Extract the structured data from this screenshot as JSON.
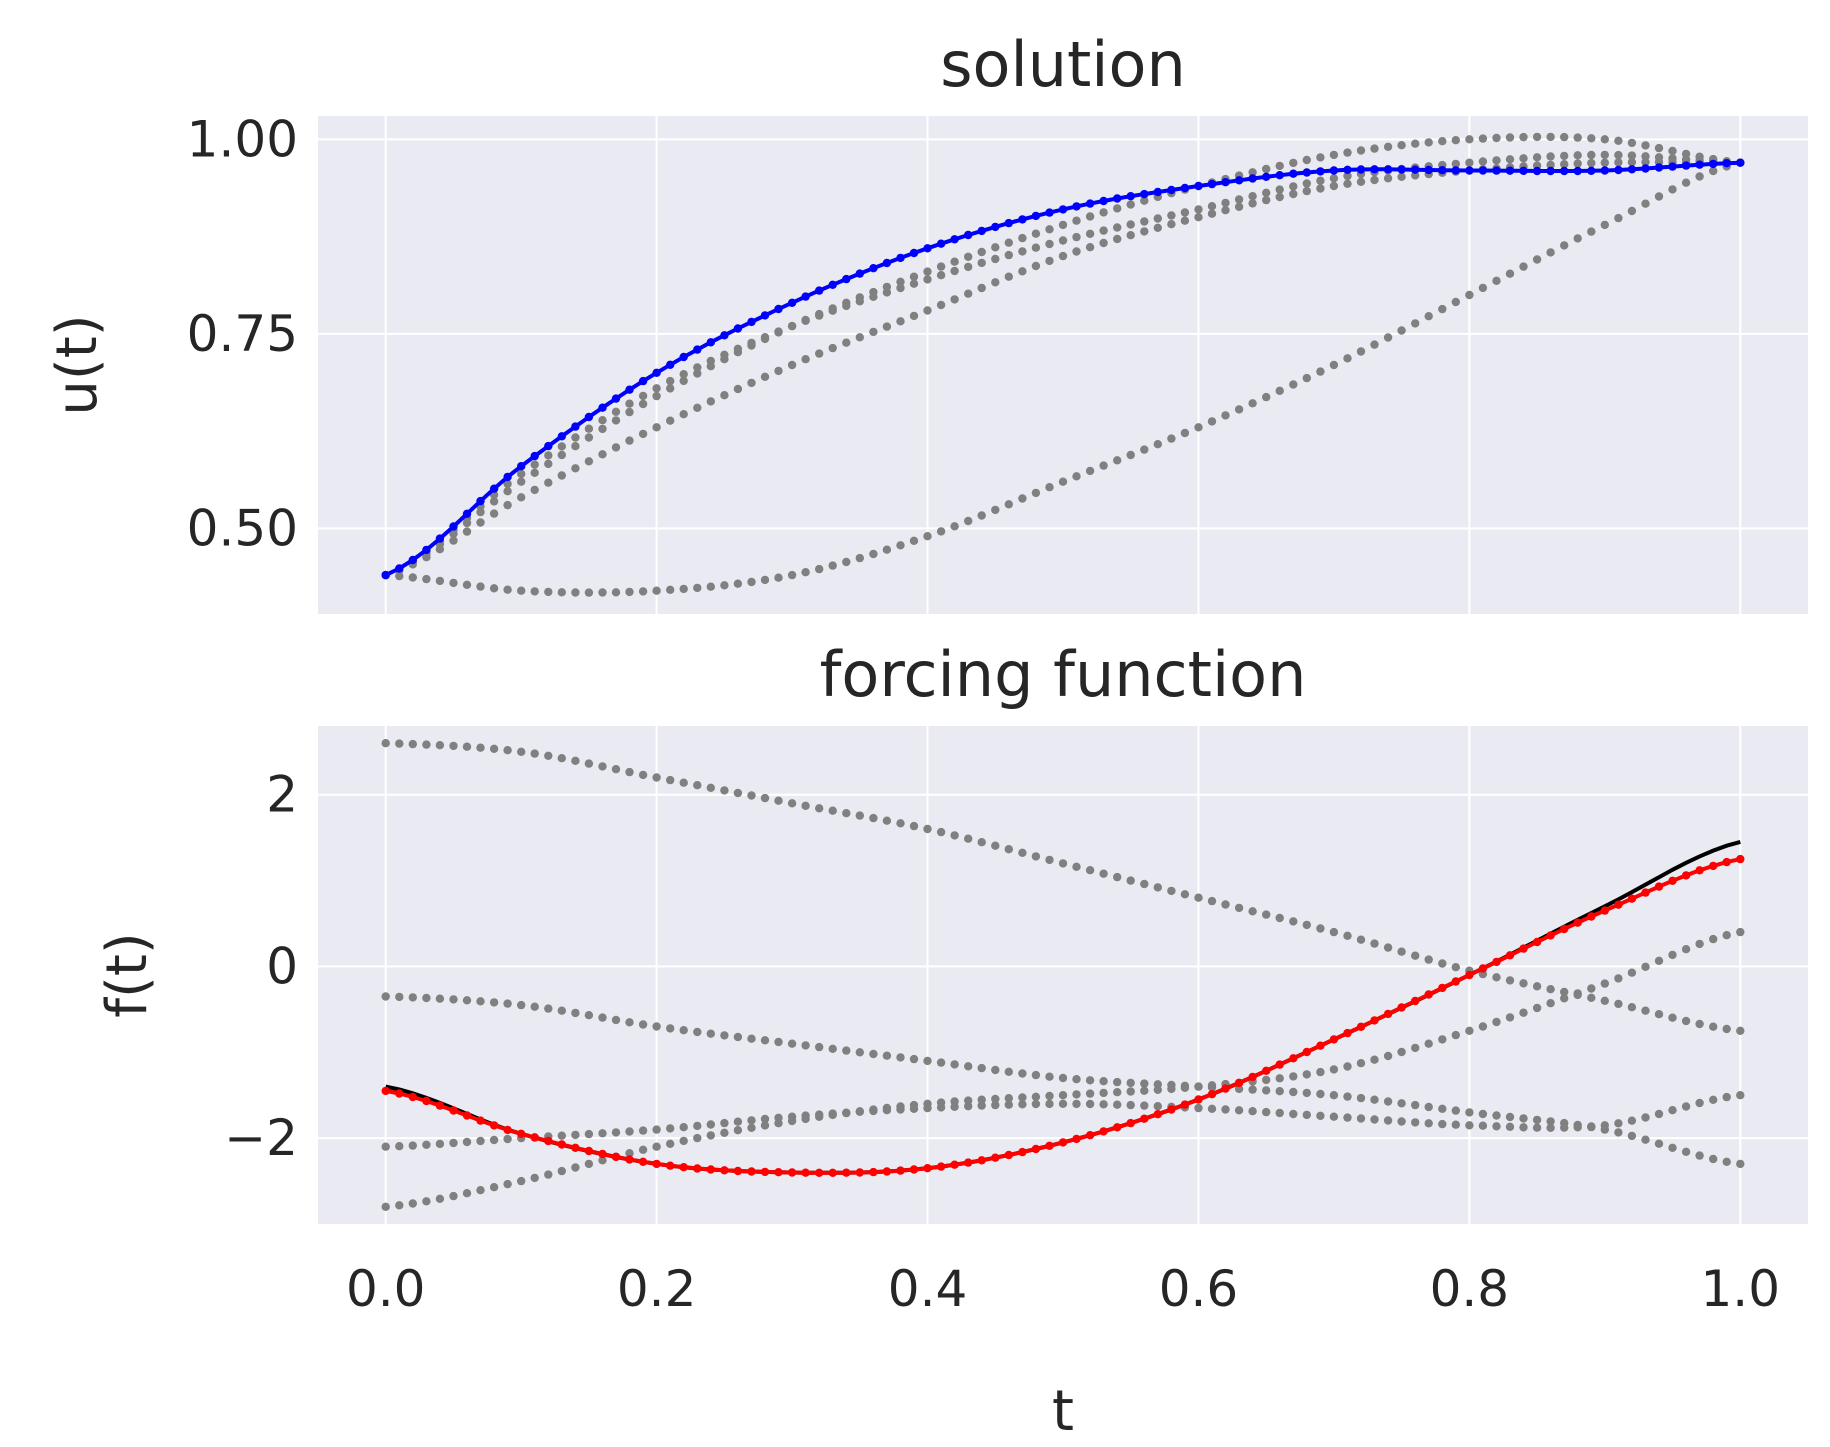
{
  "chart_data": [
    {
      "type": "scatter",
      "title": "solution",
      "xlabel": "",
      "ylabel": "u(t)",
      "xlim": [
        -0.05,
        1.05
      ],
      "ylim": [
        0.39,
        1.03
      ],
      "xticks": [
        0.0,
        0.2,
        0.4,
        0.6,
        0.8,
        1.0
      ],
      "yticks": [
        0.5,
        0.75,
        1.0
      ],
      "ytick_labels": [
        "0.50",
        "0.75",
        "1.00"
      ],
      "xtick_labels_visible": false,
      "grid": true,
      "series": [
        {
          "color": "#808080",
          "style": "dots",
          "x": [
            0.0,
            0.1,
            0.2,
            0.3,
            0.4,
            0.5,
            0.6,
            0.7,
            0.8,
            0.9,
            1.0
          ],
          "y": [
            0.44,
            0.42,
            0.42,
            0.44,
            0.49,
            0.56,
            0.63,
            0.71,
            0.8,
            0.89,
            0.97
          ]
        },
        {
          "color": "#808080",
          "style": "dots",
          "x": [
            0.0,
            0.1,
            0.2,
            0.3,
            0.4,
            0.5,
            0.6,
            0.7,
            0.8,
            0.9,
            1.0
          ],
          "y": [
            0.44,
            0.54,
            0.63,
            0.71,
            0.78,
            0.85,
            0.9,
            0.94,
            0.96,
            0.97,
            0.97
          ]
        },
        {
          "color": "#808080",
          "style": "dots",
          "x": [
            0.0,
            0.1,
            0.2,
            0.3,
            0.4,
            0.5,
            0.6,
            0.7,
            0.8,
            0.9,
            1.0
          ],
          "y": [
            0.44,
            0.57,
            0.68,
            0.76,
            0.82,
            0.87,
            0.91,
            0.95,
            0.97,
            0.98,
            0.97
          ]
        },
        {
          "color": "#808080",
          "style": "dots",
          "x": [
            0.0,
            0.1,
            0.2,
            0.3,
            0.4,
            0.5,
            0.6,
            0.7,
            0.8,
            0.9,
            1.0
          ],
          "y": [
            0.44,
            0.56,
            0.67,
            0.76,
            0.83,
            0.89,
            0.94,
            0.98,
            1.0,
            1.0,
            0.97
          ]
        },
        {
          "color": "#0000ff",
          "style": "line+dots",
          "x": [
            0.0,
            0.1,
            0.2,
            0.3,
            0.4,
            0.5,
            0.6,
            0.7,
            0.8,
            0.9,
            1.0
          ],
          "y": [
            0.44,
            0.58,
            0.7,
            0.79,
            0.86,
            0.91,
            0.94,
            0.96,
            0.96,
            0.96,
            0.97
          ]
        }
      ]
    },
    {
      "type": "scatter",
      "title": "forcing function",
      "xlabel": "t",
      "ylabel": "f(t)",
      "xlim": [
        -0.05,
        1.05
      ],
      "ylim": [
        -3.0,
        2.8
      ],
      "xticks": [
        0.0,
        0.2,
        0.4,
        0.6,
        0.8,
        1.0
      ],
      "xtick_labels": [
        "0.0",
        "0.2",
        "0.4",
        "0.6",
        "0.8",
        "1.0"
      ],
      "yticks": [
        -2,
        0,
        2
      ],
      "ytick_labels": [
        "−2",
        "0",
        "2"
      ],
      "grid": true,
      "series": [
        {
          "color": "#808080",
          "style": "dots",
          "x": [
            0.0,
            0.1,
            0.2,
            0.3,
            0.4,
            0.5,
            0.6,
            0.7,
            0.8,
            0.9,
            1.0
          ],
          "y": [
            2.6,
            2.5,
            2.2,
            1.9,
            1.6,
            1.2,
            0.8,
            0.4,
            -0.05,
            -0.4,
            -0.75
          ]
        },
        {
          "color": "#808080",
          "style": "dots",
          "x": [
            0.0,
            0.1,
            0.2,
            0.3,
            0.4,
            0.5,
            0.6,
            0.7,
            0.8,
            0.9,
            1.0
          ],
          "y": [
            -0.35,
            -0.45,
            -0.7,
            -0.9,
            -1.1,
            -1.3,
            -1.4,
            -1.5,
            -1.7,
            -1.9,
            -2.3
          ]
        },
        {
          "color": "#808080",
          "style": "dots",
          "x": [
            0.0,
            0.1,
            0.2,
            0.3,
            0.4,
            0.5,
            0.6,
            0.7,
            0.8,
            0.9,
            1.0
          ],
          "y": [
            -2.8,
            -2.5,
            -2.1,
            -1.8,
            -1.6,
            -1.5,
            -1.4,
            -1.2,
            -0.75,
            -0.2,
            0.4
          ]
        },
        {
          "color": "#808080",
          "style": "dots",
          "x": [
            0.0,
            0.1,
            0.2,
            0.3,
            0.4,
            0.5,
            0.6,
            0.7,
            0.8,
            0.9,
            1.0
          ],
          "y": [
            -2.1,
            -2.0,
            -1.9,
            -1.75,
            -1.65,
            -1.6,
            -1.65,
            -1.75,
            -1.85,
            -1.85,
            -1.5
          ]
        },
        {
          "color": "#000000",
          "style": "line",
          "x": [
            0.0,
            0.1,
            0.2,
            0.3,
            0.4,
            0.5,
            0.6,
            0.7,
            0.8,
            0.9,
            1.0
          ],
          "y": [
            -1.4,
            -1.95,
            -2.3,
            -2.4,
            -2.35,
            -2.05,
            -1.55,
            -0.85,
            -0.1,
            0.7,
            1.45
          ]
        },
        {
          "color": "#ff0000",
          "style": "line+dots",
          "x": [
            0.0,
            0.1,
            0.2,
            0.3,
            0.4,
            0.5,
            0.6,
            0.7,
            0.8,
            0.9,
            1.0
          ],
          "y": [
            -1.45,
            -1.95,
            -2.3,
            -2.4,
            -2.35,
            -2.05,
            -1.55,
            -0.85,
            -0.1,
            0.65,
            1.25
          ]
        }
      ]
    }
  ]
}
